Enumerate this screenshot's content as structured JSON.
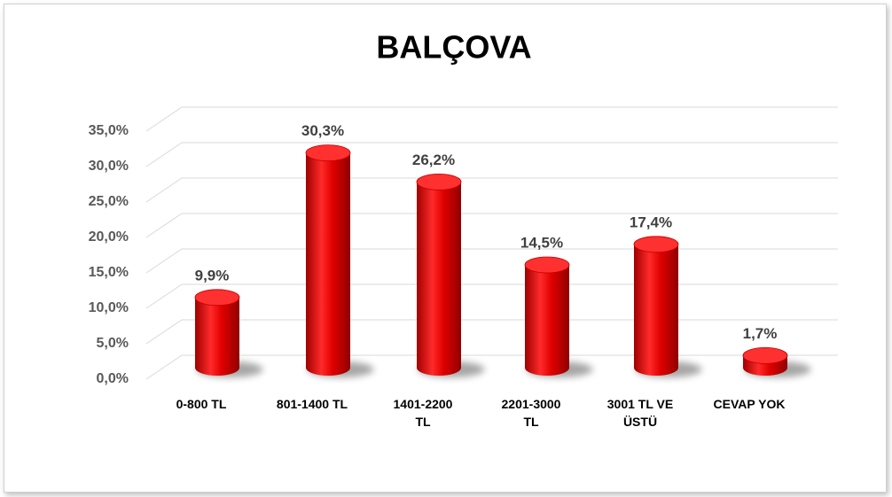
{
  "chart_data": {
    "type": "bar",
    "title": "BALÇOVA",
    "categories": [
      "0-800 TL",
      "801-1400 TL",
      "1401-2200\nTL",
      "2201-3000\nTL",
      "3001 TL VE\nÜSTÜ",
      "CEVAP YOK"
    ],
    "values": [
      9.9,
      30.3,
      26.2,
      14.5,
      17.4,
      1.7
    ],
    "value_labels": [
      "9,9%",
      "30,3%",
      "26,2%",
      "14,5%",
      "17,4%",
      "1,7%"
    ],
    "color": "#e00000",
    "ylim": [
      0,
      35
    ],
    "yticks": [
      {
        "value": 0,
        "label": "0,0%"
      },
      {
        "value": 5,
        "label": "5,0%"
      },
      {
        "value": 10,
        "label": "10,0%"
      },
      {
        "value": 15,
        "label": "15,0%"
      },
      {
        "value": 20,
        "label": "20,0%"
      },
      {
        "value": 25,
        "label": "25,0%"
      },
      {
        "value": 30,
        "label": "30,0%"
      },
      {
        "value": 35,
        "label": "35,0%"
      }
    ],
    "grid": true
  }
}
